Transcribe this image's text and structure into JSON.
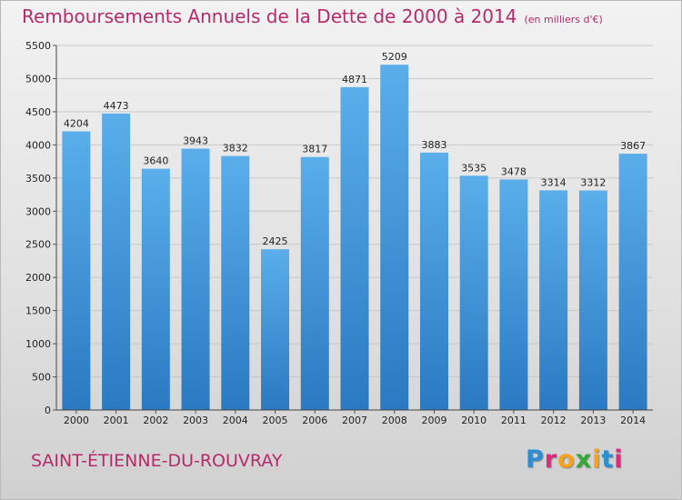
{
  "chart_data": {
    "type": "bar",
    "title": "Remboursements Annuels de la Dette de 2000 à 2014",
    "unit": "(en milliers d'€)",
    "categories": [
      "2000",
      "2001",
      "2002",
      "2003",
      "2004",
      "2005",
      "2006",
      "2007",
      "2008",
      "2009",
      "2010",
      "2011",
      "2012",
      "2013",
      "2014"
    ],
    "values": [
      4204,
      4473,
      3640,
      3943,
      3832,
      2425,
      3817,
      4871,
      5209,
      3883,
      3535,
      3478,
      3314,
      3312,
      3867
    ],
    "ylim": [
      0,
      5500
    ],
    "yticks": [
      0,
      500,
      1000,
      1500,
      2000,
      2500,
      3000,
      3500,
      4000,
      4500,
      5000,
      5500
    ],
    "grid": true,
    "bar_color": "#3d8fd8"
  },
  "commune": "SAINT-ÉTIENNE-DU-ROUVRAY",
  "logo": {
    "letters": [
      "P",
      "r",
      "o",
      "x",
      "i",
      "t",
      "i"
    ],
    "colors": [
      "#2d8ed6",
      "#e02a7d",
      "#f7a21b",
      "#35a936",
      "#f7a21b",
      "#2d8ed6",
      "#e02a7d"
    ]
  }
}
